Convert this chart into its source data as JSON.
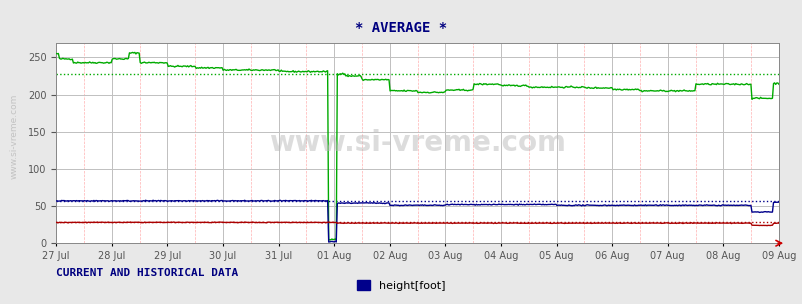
{
  "title": "* AVERAGE *",
  "xlabel": "",
  "ylabel": "",
  "background_color": "#e8e8e8",
  "plot_bg_color": "#ffffff",
  "watermark": "www.si-vreme.com",
  "ylim": [
    0,
    270
  ],
  "yticks": [
    0,
    50,
    100,
    150,
    200,
    250
  ],
  "date_labels": [
    "27 Jul",
    "28 Jul",
    "29 Jul",
    "30 Jul",
    "31 Jul",
    "01 Aug",
    "02 Aug",
    "03 Aug",
    "04 Aug",
    "05 Aug",
    "06 Aug",
    "07 Aug",
    "08 Aug",
    "09 Aug"
  ],
  "footer_text": "CURRENT AND HISTORICAL DATA",
  "legend_label": "height[foot]",
  "legend_color": "#00008b",
  "title_color": "#000080",
  "footer_color": "#000080",
  "grid_major_color": "#c0c0c0",
  "grid_minor_color": "#ffb0b0",
  "avg_green_dotted": 228,
  "avg_blue_dotted": 57,
  "avg_red_dotted": 28,
  "green_color": "#00aa00",
  "blue_color": "#00008b",
  "red_color": "#aa0000",
  "n_points": 672
}
